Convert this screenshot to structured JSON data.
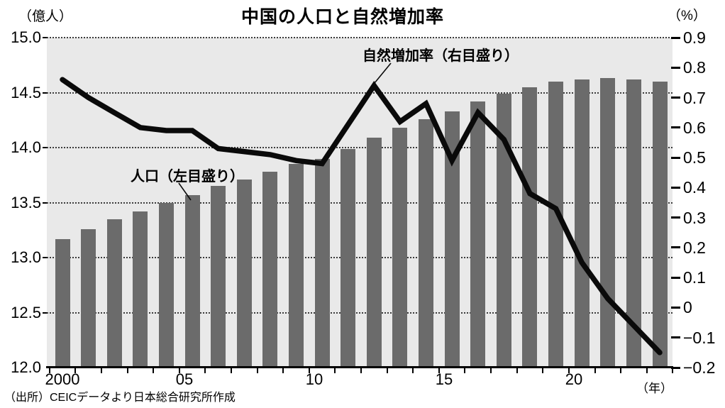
{
  "chart": {
    "title": "中国の人口と自然増加率",
    "left_axis": {
      "unit": "（億人）",
      "tick_labels": [
        "15.0",
        "14.5",
        "14.0",
        "13.5",
        "13.0",
        "12.5",
        "12.0"
      ]
    },
    "right_axis": {
      "unit": "（%）",
      "tick_labels": [
        "0.9",
        "0.8",
        "0.7",
        "0.6",
        "0.5",
        "0.4",
        "0.3",
        "0.2",
        "0.1",
        "0",
        "−0.1",
        "−0.2"
      ]
    },
    "x_axis": {
      "unit": "（年）",
      "tick_labels": [
        "2000",
        "05",
        "10",
        "15",
        "20"
      ]
    },
    "annotations": {
      "rate_label": "自然増加率（右目盛り）",
      "population_label": "人口（左目盛り）"
    },
    "source": "（出所）CEICデータより日本総合研究所作成",
    "colors": {
      "bar": "#6b6b6b",
      "line": "#0a0a0a",
      "plot_bg": "#e9e9e9",
      "grid": "#3b3b3b",
      "text": "#000000"
    }
  },
  "chart_data": {
    "type": "combo",
    "categories": [
      2000,
      2001,
      2002,
      2003,
      2004,
      2005,
      2006,
      2007,
      2008,
      2009,
      2010,
      2011,
      2012,
      2013,
      2014,
      2015,
      2016,
      2017,
      2018,
      2019,
      2020,
      2021,
      2022,
      2023
    ],
    "series": [
      {
        "name": "人口（左目盛り）",
        "type": "bar",
        "axis": "left",
        "unit": "億人",
        "values": [
          13.17,
          13.26,
          13.35,
          13.42,
          13.5,
          13.57,
          13.65,
          13.71,
          13.78,
          13.85,
          13.9,
          13.99,
          14.09,
          14.18,
          14.26,
          14.33,
          14.42,
          14.49,
          14.55,
          14.6,
          14.62,
          14.63,
          14.62,
          14.6
        ]
      },
      {
        "name": "自然増加率（右目盛り）",
        "type": "line",
        "axis": "right",
        "unit": "%",
        "values": [
          0.76,
          0.7,
          0.65,
          0.6,
          0.59,
          0.59,
          0.53,
          0.52,
          0.51,
          0.49,
          0.48,
          0.61,
          0.74,
          0.62,
          0.68,
          0.49,
          0.65,
          0.56,
          0.38,
          0.33,
          0.15,
          0.03,
          -0.06,
          -0.15
        ]
      }
    ],
    "title": "中国の人口と自然増加率",
    "left_axis_range": [
      12.0,
      15.0
    ],
    "right_axis_range": [
      -0.2,
      0.9
    ],
    "x_tick_years_labeled": [
      2000,
      2005,
      2010,
      2015,
      2020
    ],
    "grid": "horizontal-dotted",
    "legend": "inline-annotations"
  }
}
